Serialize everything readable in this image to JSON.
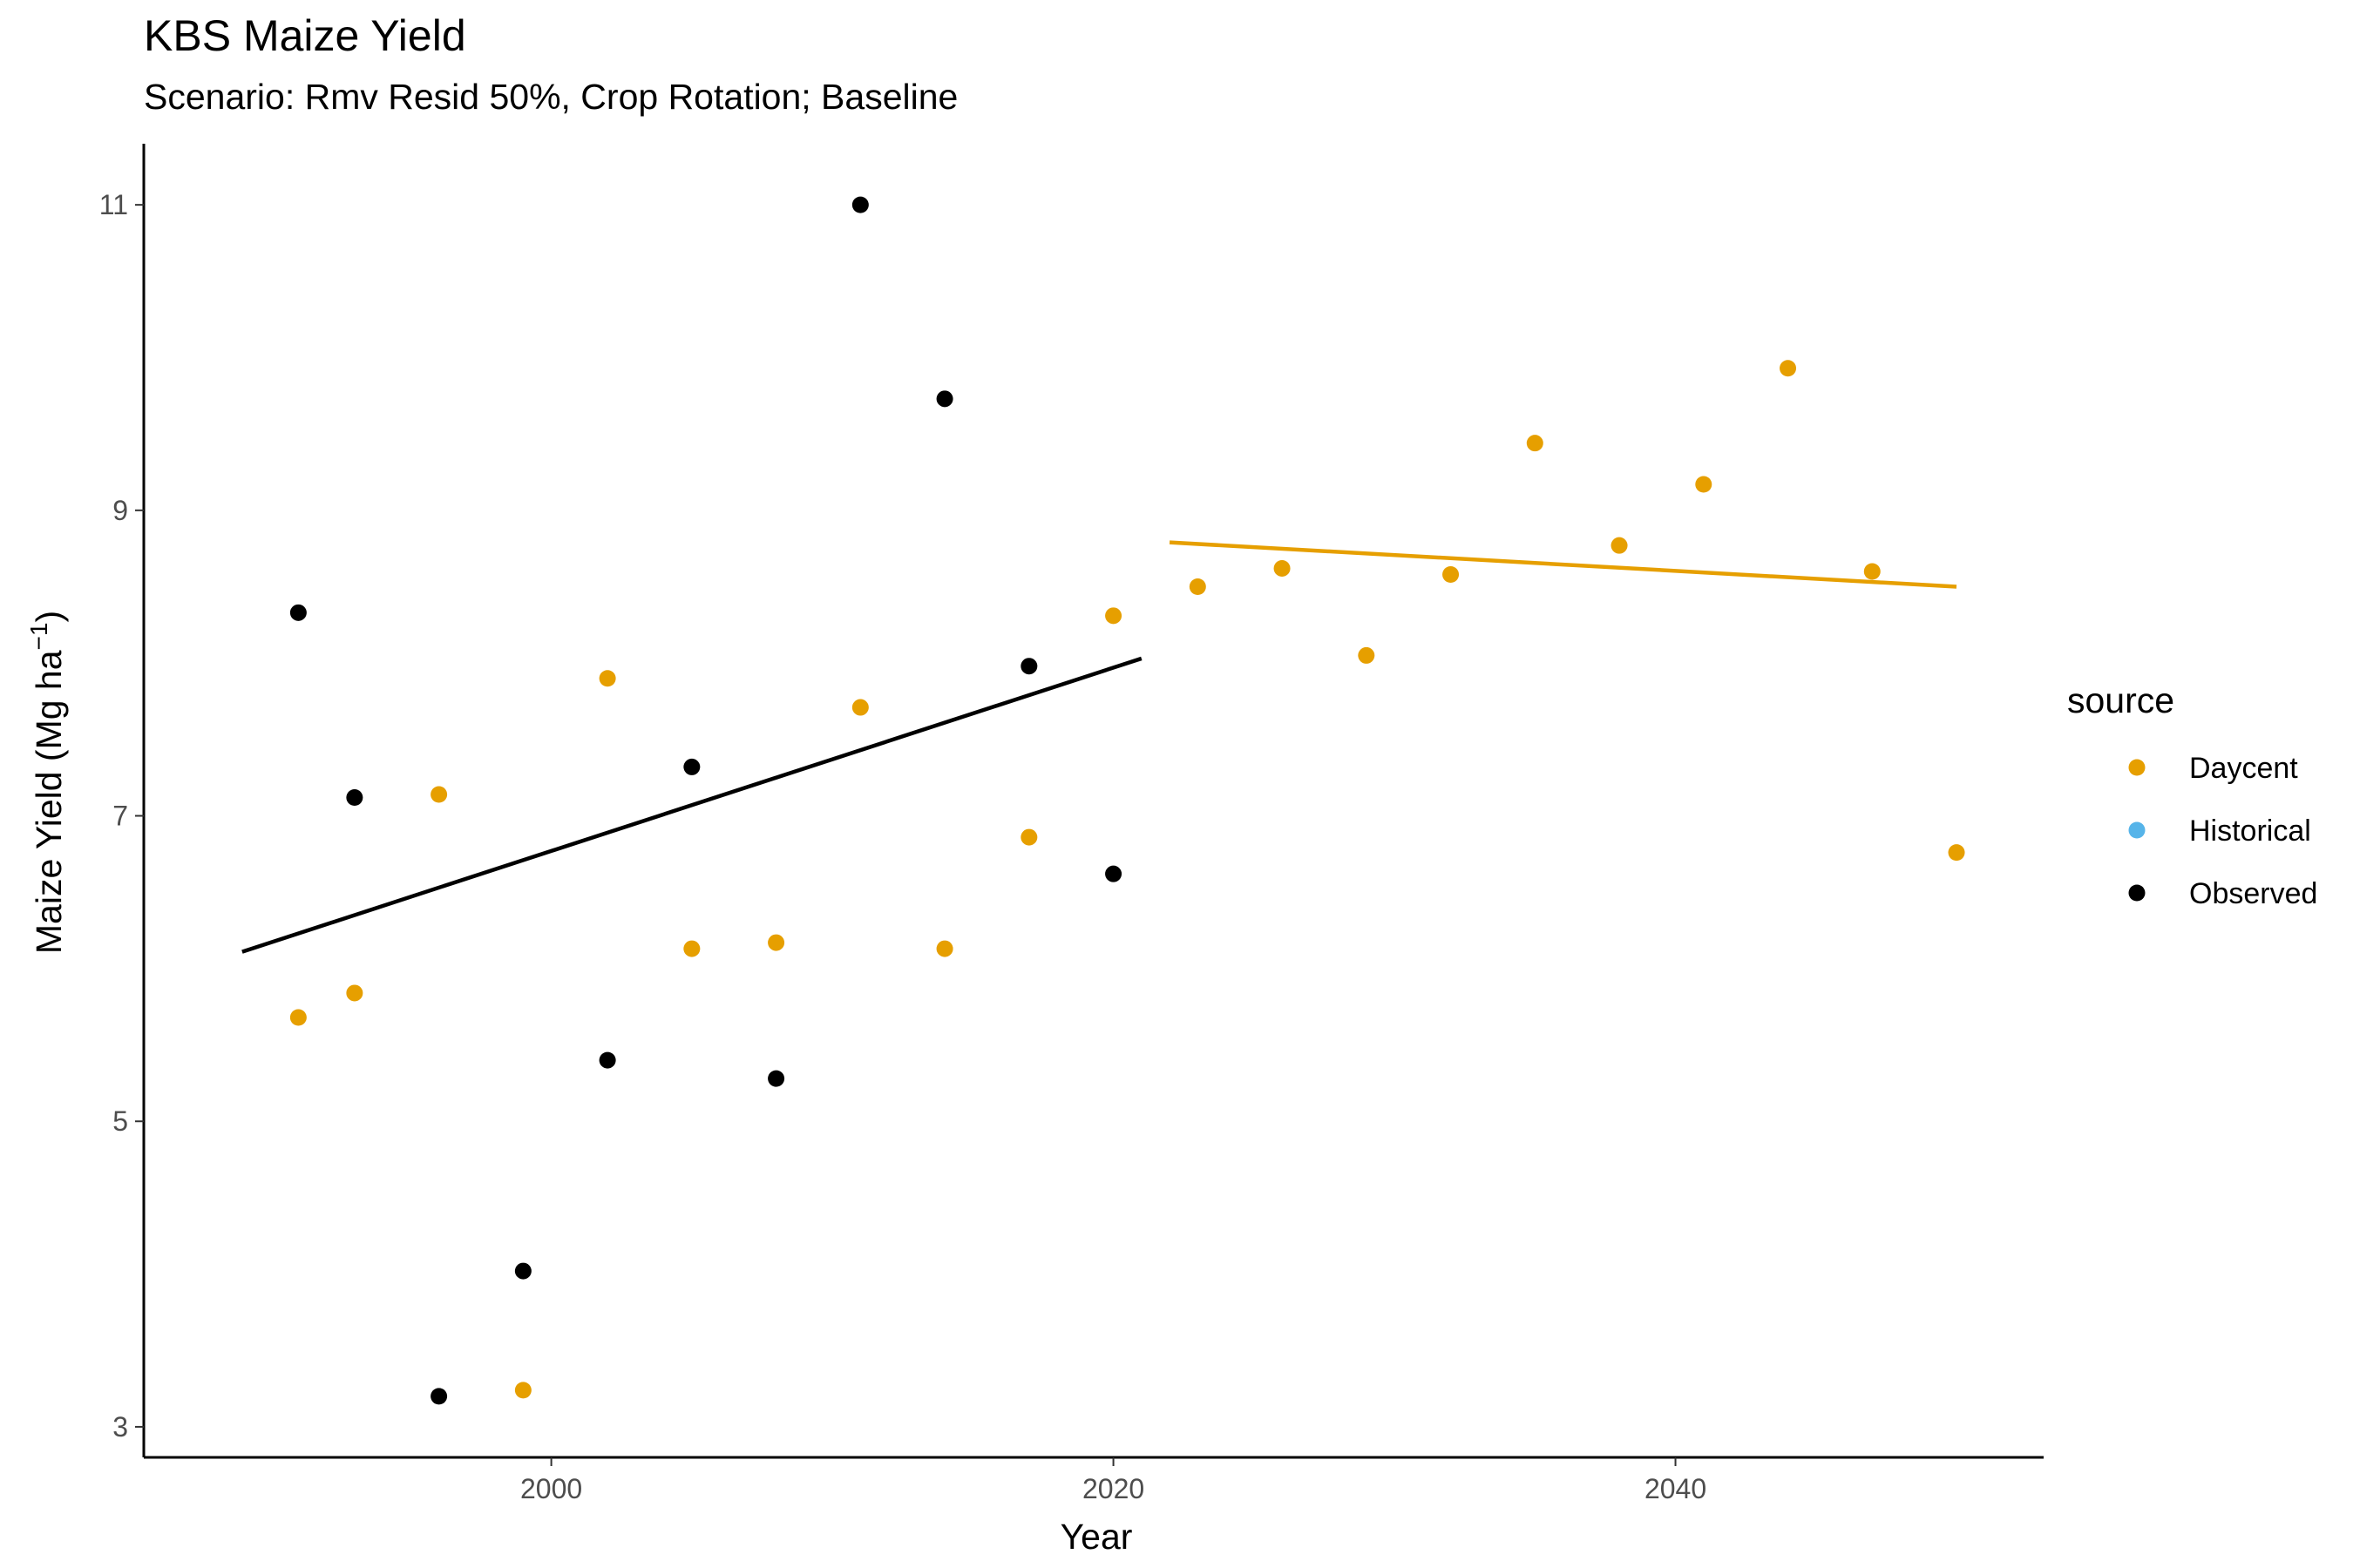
{
  "chart_data": {
    "type": "scatter",
    "title": "KBS Maize Yield",
    "subtitle": "Scenario: Rmv Resid 50%, Crop Rotation; Baseline",
    "xlabel": "Year",
    "ylabel": "Maize Yield (Mg ha",
    "ylabel_sup": "−1",
    "ylabel_close": ")",
    "xlim": [
      1985.5,
      2053.1
    ],
    "ylim": [
      2.8,
      11.4
    ],
    "x_ticks": [
      2000,
      2020,
      2040
    ],
    "y_ticks": [
      3,
      5,
      7,
      9,
      11
    ],
    "grid": false,
    "legend": {
      "title": "source",
      "position": "right",
      "entries": [
        {
          "name": "Daycent",
          "color": "#E69F00"
        },
        {
          "name": "Historical",
          "color": "#56B4E9"
        },
        {
          "name": "Observed",
          "color": "#000000"
        }
      ]
    },
    "series": [
      {
        "name": "Daycent",
        "color": "#E69F00",
        "points": [
          [
            1991,
            5.68
          ],
          [
            1993,
            5.84
          ],
          [
            1996,
            7.14
          ],
          [
            1999,
            3.24
          ],
          [
            2002,
            7.9
          ],
          [
            2005,
            6.13
          ],
          [
            2008,
            6.17
          ],
          [
            2011,
            7.71
          ],
          [
            2014,
            6.13
          ],
          [
            2017,
            6.86
          ],
          [
            2020,
            8.31
          ],
          [
            2023,
            8.5
          ],
          [
            2026,
            8.62
          ],
          [
            2029,
            8.05
          ],
          [
            2032,
            8.58
          ],
          [
            2035,
            9.44
          ],
          [
            2038,
            8.77
          ],
          [
            2041,
            9.17
          ],
          [
            2044,
            9.93
          ],
          [
            2047,
            8.6
          ],
          [
            2050,
            6.76
          ]
        ],
        "trend": [
          [
            2022,
            8.79
          ],
          [
            2050,
            8.5
          ]
        ]
      },
      {
        "name": "Historical",
        "color": "#56B4E9",
        "points": []
      },
      {
        "name": "Observed",
        "color": "#000000",
        "points": [
          [
            1991,
            8.33
          ],
          [
            1993,
            7.12
          ],
          [
            1996,
            3.2
          ],
          [
            1999,
            4.02
          ],
          [
            2002,
            5.4
          ],
          [
            2005,
            7.32
          ],
          [
            2008,
            5.28
          ],
          [
            2011,
            11.0
          ],
          [
            2014,
            9.73
          ],
          [
            2017,
            7.98
          ],
          [
            2020,
            6.62
          ]
        ],
        "trend": [
          [
            1989,
            6.11
          ],
          [
            2021,
            8.03
          ]
        ]
      }
    ]
  }
}
